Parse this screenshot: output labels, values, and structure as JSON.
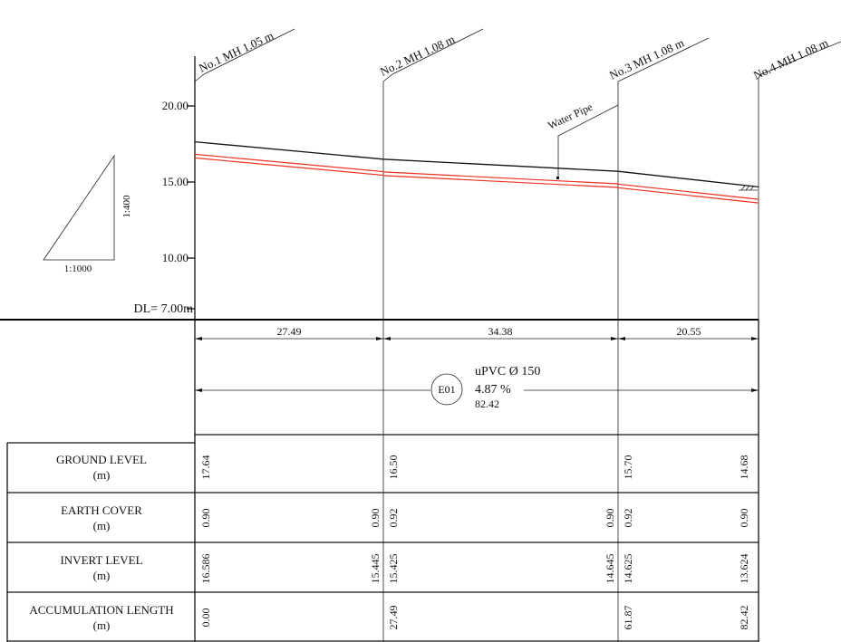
{
  "manholes": [
    {
      "label": "No.1  MH 1.05 m"
    },
    {
      "label": "No.2  MH 1.08 m"
    },
    {
      "label": "No.3  MH 1.08 m"
    },
    {
      "label": "No.4  MH 1.08 m"
    }
  ],
  "water_pipe_label": "Water Pipe",
  "elevation_ticks": [
    "20.00",
    "15.00",
    "10.00"
  ],
  "datum_label": "DL= 7.00m",
  "scale": {
    "vertical": "1:400",
    "horizontal": "1:1000"
  },
  "segment_lengths": [
    "27.49",
    "34.38",
    "20.55"
  ],
  "pipe_spec": {
    "tag": "E01",
    "material": "uPVC Ø 150",
    "slope": "4.87 %",
    "total_length": "82.42"
  },
  "rows": [
    {
      "label_line1": "GROUND LEVEL",
      "label_line2": "(m)",
      "values": [
        [
          "17.64"
        ],
        [
          "16.50"
        ],
        [
          "15.70"
        ],
        [
          "14.68"
        ]
      ]
    },
    {
      "label_line1": "EARTH COVER",
      "label_line2": "(m)",
      "values": [
        [
          "0.90"
        ],
        [
          "0.90",
          "0.92"
        ],
        [
          "0.90",
          "0.92"
        ],
        [
          "0.90"
        ]
      ]
    },
    {
      "label_line1": "INVERT LEVEL",
      "label_line2": "(m)",
      "values": [
        [
          "16.586"
        ],
        [
          "15.445",
          "15.425"
        ],
        [
          "14.645",
          "14.625"
        ],
        [
          "13.624"
        ]
      ]
    },
    {
      "label_line1": "ACCUMULATION LENGTH",
      "label_line2": "(m)",
      "values": [
        [
          "0.00"
        ],
        [
          "27.49"
        ],
        [
          "61.87"
        ],
        [
          "82.42"
        ]
      ]
    }
  ],
  "profile": {
    "datum": 7.0,
    "ground_levels": [
      17.64,
      16.5,
      15.7,
      14.68
    ],
    "invert_levels": [
      [
        16.586
      ],
      [
        15.445,
        15.425
      ],
      [
        14.645,
        14.625
      ],
      [
        13.624
      ]
    ],
    "chainage": [
      0.0,
      27.49,
      61.87,
      82.42
    ]
  }
}
